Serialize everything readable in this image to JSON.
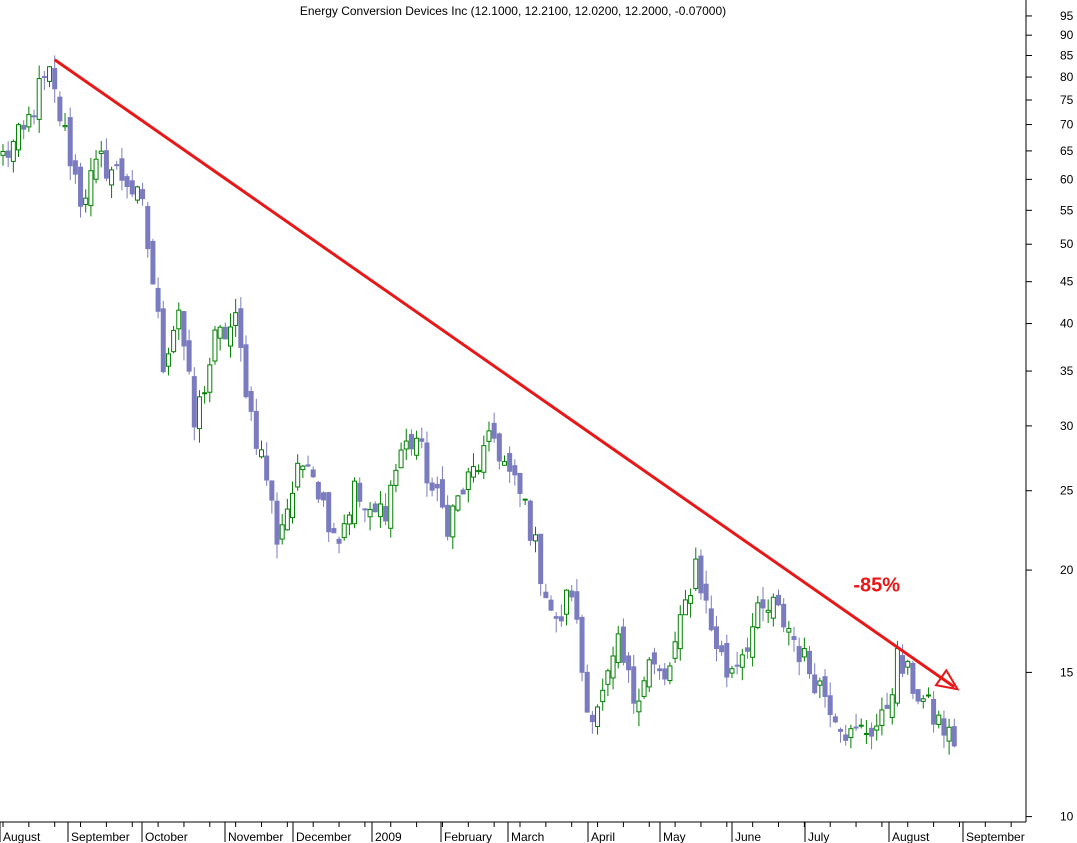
{
  "chart_data": {
    "type": "candlestick",
    "title": "Energy Conversion Devices Inc (12.1000, 12.2100, 12.0200, 12.2000, -0.07000)",
    "y_scale": "log",
    "ylim": [
      10,
      100
    ],
    "y_ticks": [
      95,
      90,
      85,
      80,
      75,
      70,
      65,
      60,
      55,
      50,
      45,
      40,
      35,
      30,
      25,
      20,
      15,
      10
    ],
    "x_ticks": [
      "August",
      "September",
      "October",
      "November",
      "December",
      "2009",
      "February",
      "March",
      "April",
      "May",
      "June",
      "July",
      "August",
      "September"
    ],
    "colors": {
      "up": "#008000",
      "down": "#7b7bc0",
      "trend": "#e81818",
      "grid": "#000000"
    },
    "close_anchors": [
      {
        "w": 0,
        "c": 64
      },
      {
        "w": 4,
        "c": 68
      },
      {
        "w": 7,
        "c": 77
      },
      {
        "w": 9,
        "c": 80
      },
      {
        "w": 12,
        "c": 68
      },
      {
        "w": 15,
        "c": 57
      },
      {
        "w": 19,
        "c": 63
      },
      {
        "w": 24,
        "c": 60
      },
      {
        "w": 27,
        "c": 55
      },
      {
        "w": 29,
        "c": 45
      },
      {
        "w": 31,
        "c": 36
      },
      {
        "w": 34,
        "c": 42
      },
      {
        "w": 37,
        "c": 30
      },
      {
        "w": 41,
        "c": 38
      },
      {
        "w": 45,
        "c": 40
      },
      {
        "w": 48,
        "c": 31
      },
      {
        "w": 51,
        "c": 26
      },
      {
        "w": 53,
        "c": 22
      },
      {
        "w": 56,
        "c": 25
      },
      {
        "w": 59,
        "c": 28
      },
      {
        "w": 62,
        "c": 24
      },
      {
        "w": 65,
        "c": 22
      },
      {
        "w": 68,
        "c": 25
      },
      {
        "w": 71,
        "c": 23
      },
      {
        "w": 74,
        "c": 24
      },
      {
        "w": 77,
        "c": 28
      },
      {
        "w": 80,
        "c": 29
      },
      {
        "w": 83,
        "c": 25
      },
      {
        "w": 86,
        "c": 23
      },
      {
        "w": 89,
        "c": 25
      },
      {
        "w": 92,
        "c": 27
      },
      {
        "w": 95,
        "c": 29
      },
      {
        "w": 98,
        "c": 26
      },
      {
        "w": 101,
        "c": 24
      },
      {
        "w": 104,
        "c": 20
      },
      {
        "w": 107,
        "c": 17
      },
      {
        "w": 110,
        "c": 19
      },
      {
        "w": 113,
        "c": 13.5
      },
      {
        "w": 116,
        "c": 14
      },
      {
        "w": 119,
        "c": 16
      },
      {
        "w": 122,
        "c": 14
      },
      {
        "w": 125,
        "c": 15.5
      },
      {
        "w": 128,
        "c": 14.5
      },
      {
        "w": 131,
        "c": 17
      },
      {
        "w": 134,
        "c": 20.5
      },
      {
        "w": 137,
        "c": 17
      },
      {
        "w": 140,
        "c": 15
      },
      {
        "w": 143,
        "c": 16
      },
      {
        "w": 146,
        "c": 17.5
      },
      {
        "w": 149,
        "c": 18
      },
      {
        "w": 152,
        "c": 17
      },
      {
        "w": 155,
        "c": 15.5
      },
      {
        "w": 158,
        "c": 14.5
      },
      {
        "w": 161,
        "c": 13.5
      },
      {
        "w": 164,
        "c": 12.5
      },
      {
        "w": 167,
        "c": 12.8
      },
      {
        "w": 170,
        "c": 13
      },
      {
        "w": 173,
        "c": 15.5
      },
      {
        "w": 176,
        "c": 14.5
      },
      {
        "w": 179,
        "c": 13.5
      },
      {
        "w": 182,
        "c": 12.8
      },
      {
        "w": 184,
        "c": 12.2
      }
    ],
    "trendline": {
      "start": {
        "w": 10,
        "c": 84
      },
      "end": {
        "w": 184,
        "c": 14.4
      }
    },
    "annotation": {
      "text": "-85%",
      "w": 169,
      "c": 19.2,
      "color": "#e81818"
    }
  }
}
